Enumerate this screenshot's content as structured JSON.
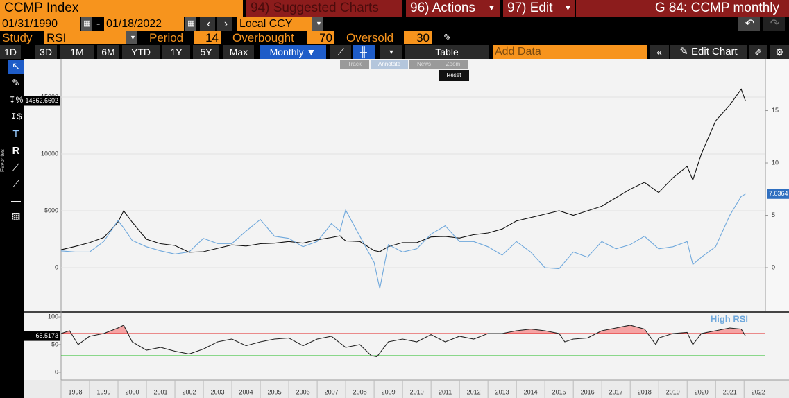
{
  "header": {
    "security": "CCMP Index",
    "menu": [
      "94) Suggested Charts",
      "96) Actions",
      "97) Edit"
    ],
    "chart_title": "G 84: CCMP monthly",
    "start_date": "01/31/1990",
    "end_date": "01/18/2022",
    "currency": "Local CCY"
  },
  "study": {
    "study_label": "Study",
    "study": "RSI",
    "period_label": "Period",
    "period": 14,
    "overbought_label": "Overbought",
    "overbought": 70,
    "oversold_label": "Oversold",
    "oversold": 30
  },
  "toolbar": {
    "periods": [
      "1D",
      "3D",
      "1M",
      "6M",
      "YTD",
      "1Y",
      "5Y",
      "Max"
    ],
    "frequency": "Monthly",
    "table": "Table",
    "add_data": "Add Data",
    "edit_chart": "Edit Chart"
  },
  "chart_tools": [
    "Track",
    "Annotate",
    "News",
    "Zoom",
    "Reset"
  ],
  "sidebar": {
    "favorites": "Favorites"
  },
  "chart_data": [
    {
      "type": "line",
      "x": [
        1998.0,
        1998.5,
        1999.0,
        1999.5,
        2000.0,
        2000.2,
        2000.5,
        2001.0,
        2001.5,
        2002.0,
        2002.5,
        2003.0,
        2003.5,
        2004.0,
        2004.5,
        2005.0,
        2005.5,
        2006.0,
        2006.5,
        2007.0,
        2007.5,
        2007.8,
        2008.0,
        2008.5,
        2009.0,
        2009.2,
        2009.5,
        2010.0,
        2010.5,
        2011.0,
        2011.5,
        2012.0,
        2012.5,
        2013.0,
        2013.5,
        2014.0,
        2014.5,
        2015.0,
        2015.5,
        2016.0,
        2016.5,
        2017.0,
        2017.5,
        2018.0,
        2018.5,
        2019.0,
        2019.5,
        2020.0,
        2020.2,
        2020.5,
        2021.0,
        2021.5,
        2021.9,
        2022.05
      ],
      "series": [
        {
          "color": "#111111",
          "values": [
            1570,
            1870,
            2200,
            2650,
            4000,
            5000,
            4000,
            2500,
            2100,
            1950,
            1350,
            1400,
            1700,
            2000,
            1900,
            2100,
            2150,
            2300,
            2150,
            2450,
            2650,
            2800,
            2350,
            2300,
            1500,
            1400,
            1850,
            2200,
            2200,
            2700,
            2750,
            2600,
            2900,
            3050,
            3400,
            4100,
            4400,
            4700,
            5000,
            4600,
            5000,
            5400,
            6150,
            6900,
            7500,
            6600,
            7900,
            8900,
            7700,
            10000,
            12900,
            14300,
            15700,
            14662.6602
          ]
        },
        {
          "color": "#6fa8dc",
          "axis": "y2",
          "values": [
            1.6,
            1.5,
            1.5,
            2.5,
            4.5,
            3.8,
            2.6,
            2.0,
            1.6,
            1.3,
            1.5,
            2.8,
            2.3,
            2.3,
            3.5,
            4.6,
            3.0,
            2.8,
            2.0,
            2.5,
            4.2,
            3.5,
            5.5,
            3.0,
            0.5,
            -2.0,
            2.2,
            1.5,
            1.8,
            3.2,
            4.0,
            2.5,
            2.5,
            2.0,
            1.2,
            2.5,
            1.5,
            0.0,
            -0.1,
            1.5,
            1.0,
            2.5,
            1.8,
            2.2,
            3.0,
            1.8,
            2.0,
            2.5,
            0.3,
            1.0,
            2.0,
            5.0,
            6.8,
            7.0364
          ]
        }
      ],
      "xlim": [
        1998,
        2022.75
      ],
      "ylim": [
        -3720,
        18290
      ],
      "yticks": [
        0,
        5000,
        10000,
        15000
      ],
      "y2lim": [
        -4.04,
        19.87
      ],
      "y2ticks": [
        0,
        5,
        10,
        15
      ],
      "grid": true
    },
    {
      "type": "line",
      "x": [
        1998.0,
        1998.3,
        1998.6,
        1999.0,
        1999.5,
        2000.0,
        2000.2,
        2000.5,
        2001.0,
        2001.5,
        2002.0,
        2002.5,
        2003.0,
        2003.5,
        2004.0,
        2004.5,
        2005.0,
        2005.5,
        2006.0,
        2006.5,
        2007.0,
        2007.5,
        2008.0,
        2008.5,
        2008.9,
        2009.1,
        2009.5,
        2010.0,
        2010.5,
        2011.0,
        2011.5,
        2012.0,
        2012.5,
        2013.0,
        2013.5,
        2014.0,
        2014.5,
        2015.0,
        2015.5,
        2015.7,
        2016.0,
        2016.5,
        2017.0,
        2017.5,
        2018.0,
        2018.5,
        2018.9,
        2019.0,
        2019.5,
        2020.0,
        2020.2,
        2020.5,
        2021.0,
        2021.5,
        2021.9,
        2022.05
      ],
      "series": [
        {
          "color": "#222222",
          "values": [
            70,
            75,
            50,
            65,
            70,
            80,
            85,
            55,
            40,
            45,
            38,
            33,
            42,
            55,
            60,
            48,
            55,
            60,
            62,
            48,
            60,
            65,
            45,
            50,
            30,
            28,
            55,
            60,
            55,
            68,
            55,
            65,
            60,
            70,
            70,
            75,
            78,
            75,
            70,
            55,
            60,
            62,
            75,
            80,
            85,
            78,
            50,
            62,
            70,
            72,
            50,
            70,
            75,
            80,
            78,
            65.5173
          ]
        }
      ],
      "annotation": "High RSI",
      "annotation_color": "#6fa8dc",
      "overbought_color": "#e02020",
      "oversold_color": "#22bb22",
      "shade_color": "#f5a3a3",
      "xlim": [
        1998,
        2022.75
      ],
      "xticks": [
        1998,
        1999,
        2000,
        2001,
        2002,
        2003,
        2004,
        2005,
        2006,
        2007,
        2008,
        2009,
        2010,
        2011,
        2012,
        2013,
        2014,
        2015,
        2016,
        2017,
        2018,
        2019,
        2020,
        2021,
        2022
      ],
      "ylim": [
        -13.9,
        106.3
      ],
      "yticks": [
        0,
        50,
        100
      ]
    }
  ]
}
